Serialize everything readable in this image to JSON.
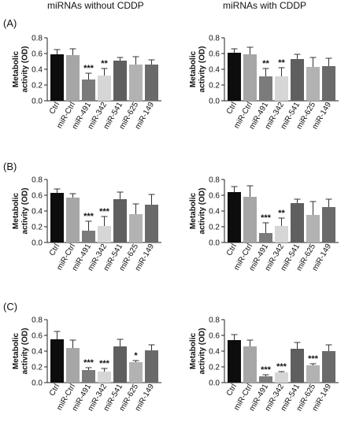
{
  "column_titles": [
    "miRNAs without CDDP",
    "miRNAs with CDDP"
  ],
  "row_labels": [
    "(A)",
    "(B)",
    "(C)"
  ],
  "ylabel": "Metabolic activity (OD)",
  "categories": [
    "Ctrl",
    "miR-Ctrl",
    "miR-491",
    "miR-342",
    "miR-541",
    "miR-625",
    "miR-149"
  ],
  "bar_colors": [
    "#0d0d0d",
    "#a6a6a6",
    "#7b7b7b",
    "#d6d6d6",
    "#5f5f5f",
    "#b2b2b2",
    "#6a6a6a"
  ],
  "chart_data": [
    {
      "id": "A-left",
      "type": "bar",
      "ylim": [
        0,
        0.8
      ],
      "yticks": [
        "0.0",
        "0.2",
        "0.4",
        "0.6",
        "0.8"
      ],
      "values": [
        0.59,
        0.58,
        0.27,
        0.32,
        0.51,
        0.46,
        0.46
      ],
      "errors": [
        0.06,
        0.08,
        0.08,
        0.09,
        0.04,
        0.1,
        0.06
      ],
      "significance": [
        "",
        "",
        "***",
        "**",
        "",
        "",
        ""
      ]
    },
    {
      "id": "A-right",
      "type": "bar",
      "ylim": [
        0,
        0.8
      ],
      "yticks": [
        "0.0",
        "0.2",
        "0.4",
        "0.6",
        "0.8"
      ],
      "values": [
        0.61,
        0.59,
        0.31,
        0.31,
        0.53,
        0.43,
        0.44
      ],
      "errors": [
        0.05,
        0.09,
        0.1,
        0.11,
        0.06,
        0.12,
        0.1
      ],
      "significance": [
        "",
        "",
        "**",
        "**",
        "",
        "",
        ""
      ]
    },
    {
      "id": "B-left",
      "type": "bar",
      "ylim": [
        0,
        0.8
      ],
      "yticks": [
        "0.0",
        "0.2",
        "0.4",
        "0.6",
        "0.8"
      ],
      "values": [
        0.63,
        0.57,
        0.15,
        0.21,
        0.55,
        0.36,
        0.48
      ],
      "errors": [
        0.05,
        0.05,
        0.12,
        0.12,
        0.09,
        0.13,
        0.13
      ],
      "significance": [
        "",
        "",
        "***",
        "***",
        "",
        "",
        ""
      ]
    },
    {
      "id": "B-right",
      "type": "bar",
      "ylim": [
        0,
        0.8
      ],
      "yticks": [
        "0.0",
        "0.2",
        "0.4",
        "0.6",
        "0.8"
      ],
      "values": [
        0.64,
        0.58,
        0.12,
        0.21,
        0.5,
        0.35,
        0.45
      ],
      "errors": [
        0.07,
        0.14,
        0.13,
        0.1,
        0.05,
        0.17,
        0.1
      ],
      "significance": [
        "",
        "",
        "***",
        "**",
        "",
        "",
        ""
      ]
    },
    {
      "id": "C-left",
      "type": "bar",
      "ylim": [
        0,
        0.8
      ],
      "yticks": [
        "0.0",
        "0.2",
        "0.4",
        "0.6",
        "0.8"
      ],
      "values": [
        0.55,
        0.44,
        0.16,
        0.14,
        0.46,
        0.26,
        0.41
      ],
      "errors": [
        0.1,
        0.1,
        0.03,
        0.04,
        0.09,
        0.02,
        0.07
      ],
      "significance": [
        "",
        "",
        "***",
        "***",
        "",
        "*",
        ""
      ]
    },
    {
      "id": "C-right",
      "type": "bar",
      "ylim": [
        0,
        0.8
      ],
      "yticks": [
        "0.0",
        "0.2",
        "0.4",
        "0.6",
        "0.8"
      ],
      "values": [
        0.54,
        0.46,
        0.08,
        0.13,
        0.43,
        0.22,
        0.4
      ],
      "errors": [
        0.07,
        0.08,
        0.02,
        0.01,
        0.08,
        0.02,
        0.08
      ],
      "significance": [
        "",
        "",
        "***",
        "***",
        "",
        "***",
        ""
      ]
    }
  ]
}
